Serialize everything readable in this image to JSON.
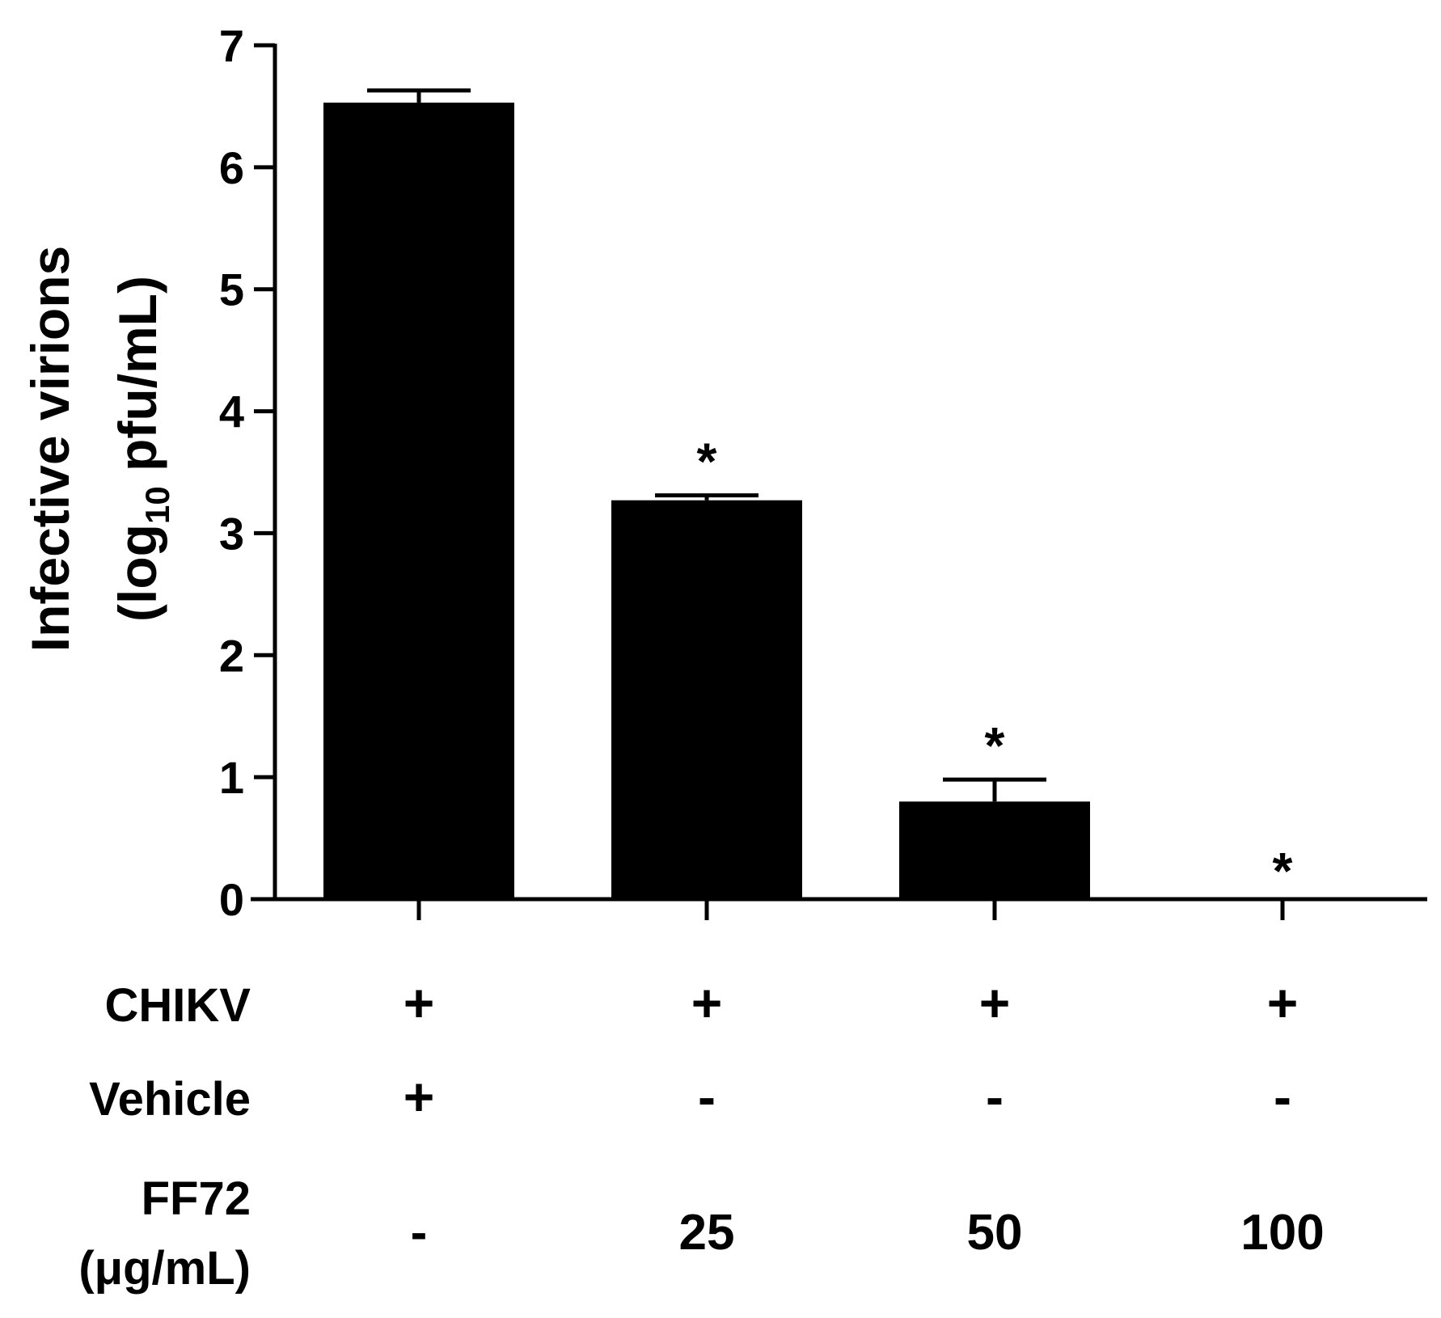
{
  "chart_data": {
    "type": "bar",
    "ylabel_line1": "Infective virions",
    "ylabel_line2_pre": "(log",
    "ylabel_line2_sub": "10",
    "ylabel_line2_post": " pfu/mL)",
    "ylim": [
      0,
      7
    ],
    "yticks": [
      "0",
      "1",
      "2",
      "3",
      "4",
      "5",
      "6",
      "7"
    ],
    "grid": false,
    "bar_color": "#000000",
    "groups": [
      {
        "value": 6.53,
        "error": 0.1,
        "significance": "",
        "chikv": "+",
        "vehicle": "+",
        "ff72": "-"
      },
      {
        "value": 3.27,
        "error": 0.04,
        "significance": "*",
        "chikv": "+",
        "vehicle": "-",
        "ff72": "25"
      },
      {
        "value": 0.8,
        "error": 0.18,
        "significance": "*",
        "chikv": "+",
        "vehicle": "-",
        "ff72": "50"
      },
      {
        "value": 0,
        "error": 0,
        "significance": "*",
        "chikv": "+",
        "vehicle": "-",
        "ff72": "100"
      }
    ],
    "row_labels": {
      "chikv": "CHIKV",
      "vehicle": "Vehicle",
      "ff72_line1": "FF72",
      "ff72_line2": "(μg/mL)"
    }
  }
}
